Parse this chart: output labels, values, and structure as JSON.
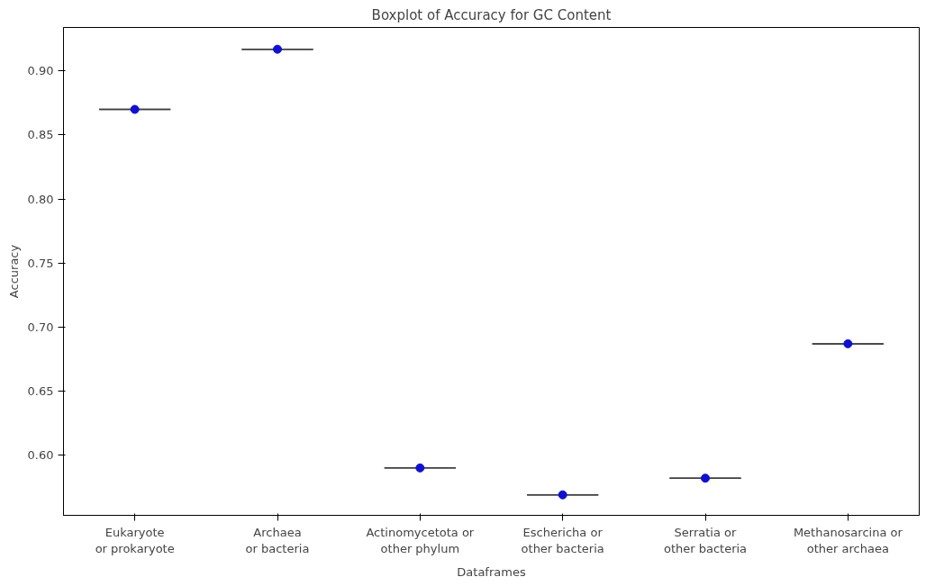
{
  "chart_data": {
    "type": "box",
    "title": "Boxplot of Accuracy for GC Content",
    "xlabel": "Dataframes",
    "ylabel": "Accuracy",
    "categories": [
      "Eukaryote or prokaryote",
      "Archaea or bacteria",
      "Actinomycetota or other phylum",
      "Eschericha or other bacteria",
      "Serratia or other bacteria",
      "Methanosarcina or other archaea"
    ],
    "boxes": [
      {
        "low": 0.87,
        "q1": 0.87,
        "median": 0.87,
        "q3": 0.87,
        "high": 0.87
      },
      {
        "low": 0.917,
        "q1": 0.917,
        "median": 0.917,
        "q3": 0.917,
        "high": 0.917
      },
      {
        "low": 0.59,
        "q1": 0.59,
        "median": 0.59,
        "q3": 0.59,
        "high": 0.59
      },
      {
        "low": 0.569,
        "q1": 0.569,
        "median": 0.569,
        "q3": 0.569,
        "high": 0.569
      },
      {
        "low": 0.582,
        "q1": 0.582,
        "median": 0.582,
        "q3": 0.582,
        "high": 0.582
      },
      {
        "low": 0.687,
        "q1": 0.687,
        "median": 0.687,
        "q3": 0.687,
        "high": 0.687
      }
    ],
    "series": [
      {
        "type": "scatter",
        "x": [
          "Eukaryote or prokaryote",
          "Archaea or bacteria",
          "Actinomycetota or other phylum",
          "Eschericha or other bacteria",
          "Serratia or other bacteria",
          "Methanosarcina or other archaea"
        ],
        "values": [
          0.87,
          0.917,
          0.59,
          0.569,
          0.582,
          0.687
        ],
        "color": "#1010d0"
      }
    ],
    "marker": "circle",
    "ylim": [
      0.553,
      0.934
    ],
    "yticks": [
      {
        "value": 0.6,
        "label": "0.60"
      },
      0.65,
      {
        "value": 0.7,
        "label": "0.70"
      },
      0.75,
      {
        "value": 0.8,
        "label": "0.80"
      },
      0.85,
      {
        "value": 0.9,
        "label": "0.90"
      }
    ],
    "grid": false
  }
}
